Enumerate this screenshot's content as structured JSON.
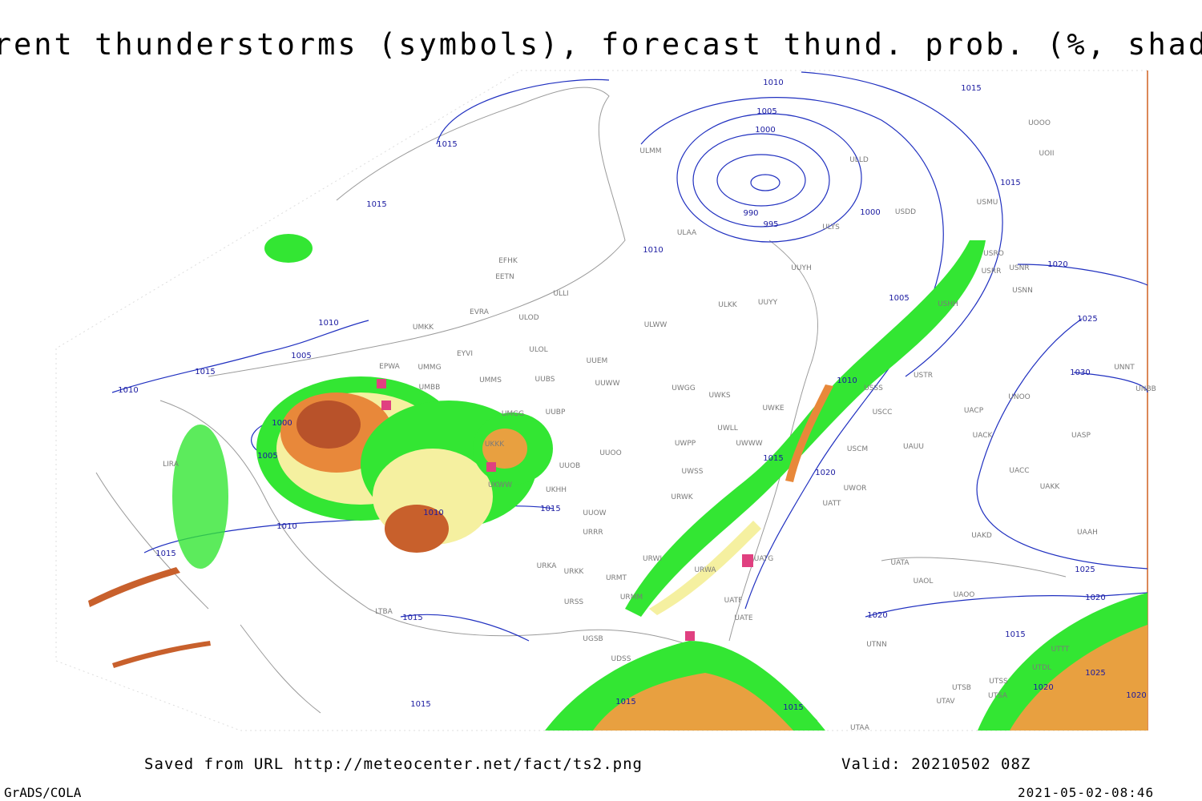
{
  "title": "Current thunderstorms (symbols), forecast thund. prob. (%, shaded)",
  "isobar_labels": [
    "1010",
    "1015",
    "1005",
    "1000",
    "1015",
    "990",
    "995",
    "1000",
    "1015",
    "1015",
    "1010",
    "1020",
    "1005",
    "1025",
    "1010",
    "1005",
    "1015",
    "1010",
    "1030",
    "1010",
    "1000",
    "1005",
    "1015",
    "1020",
    "1015",
    "1010",
    "1010",
    "1015",
    "1025",
    "1020",
    "1015",
    "1020",
    "1015",
    "1025",
    "1020",
    "1020",
    "1015",
    "1015",
    "1015"
  ],
  "station_labels": [
    "ULMM",
    "ULLD",
    "UOII",
    "UOOO",
    "USMU",
    "ULAA",
    "ULYS",
    "USDD",
    "USRO",
    "USNR",
    "UUYH",
    "USRR",
    "USNN",
    "EFHK",
    "EETN",
    "ULLI",
    "ULKK",
    "UUYY",
    "USHH",
    "EVRA",
    "ULOD",
    "UMKK",
    "ULWW",
    "ULOL",
    "UUEM",
    "EYVI",
    "EPWA",
    "UMMG",
    "UMBB",
    "UMMS",
    "UUBS",
    "UUWW",
    "UWGG",
    "UWKS",
    "USSS",
    "USTR",
    "UNOO",
    "UNNT",
    "UNBB",
    "UMGG",
    "UUBP",
    "UWKE",
    "UWLL",
    "UWWW",
    "USCC",
    "UACP",
    "UKKK",
    "UWPP",
    "USCM",
    "UAUU",
    "UACK",
    "UASP",
    "UUOO",
    "UUOB",
    "UWSS",
    "UACC",
    "UAKK",
    "UKWW",
    "UWOR",
    "UKHH",
    "URWK",
    "UATT",
    "UUOW",
    "URRR",
    "UAKD",
    "UAAH",
    "URWI",
    "URKA",
    "URKK",
    "URMT",
    "URWA",
    "UATG",
    "UATA",
    "UAOL",
    "UAOO",
    "URSS",
    "URMM",
    "UATF",
    "UATE",
    "UGSB",
    "UTNN",
    "UTTT",
    "UTDL",
    "UTSB",
    "UTSS",
    "UTSA",
    "UTAV",
    "UTAA",
    "LTBA",
    "LIRA",
    "UDSS"
  ],
  "footer": {
    "source": "Saved from URL http://meteocenter.net/fact/ts2.png",
    "valid": "Valid: 20210502 08Z",
    "software": "GrADS/COLA",
    "timestamp": "2021-05-02-08:46"
  }
}
